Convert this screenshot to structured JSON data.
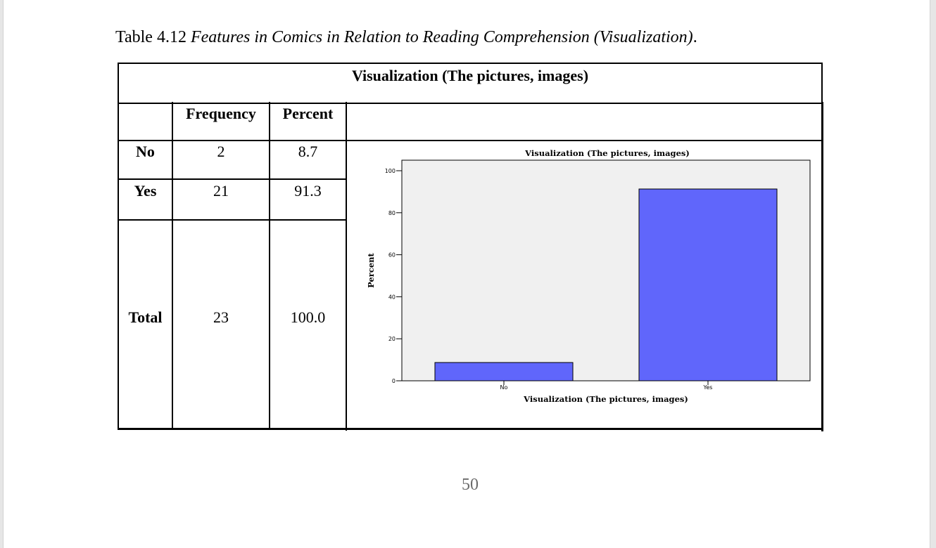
{
  "caption": {
    "label": "Table 4.12 ",
    "title": "Features in Comics in Relation to Reading Comprehension (Visualization)",
    "end": "."
  },
  "table": {
    "header": "Visualization (The pictures, images)",
    "columns": [
      "Frequency",
      "Percent"
    ],
    "rows": [
      {
        "label": "No",
        "frequency": "2",
        "percent": "8.7"
      },
      {
        "label": "Yes",
        "frequency": "21",
        "percent": "91.3"
      },
      {
        "label": "Total",
        "frequency": "23",
        "percent": "100.0"
      }
    ]
  },
  "chart_data": {
    "type": "bar",
    "title": "Visualization (The pictures, images)",
    "xlabel": "Visualization (The pictures, images)",
    "ylabel": "Percent",
    "categories": [
      "No",
      "Yes"
    ],
    "values": [
      8.7,
      91.3
    ],
    "ylim": [
      0,
      100
    ],
    "yticks": [
      0,
      20,
      40,
      60,
      80,
      100
    ],
    "grid": false,
    "bar_color": "#6066fb",
    "plot_background": "#f0f0f0"
  },
  "page_number": "50"
}
